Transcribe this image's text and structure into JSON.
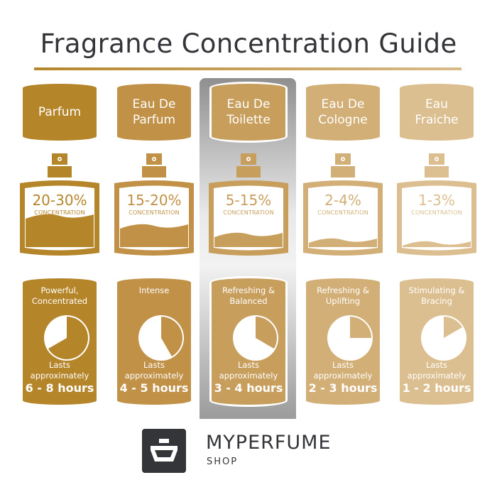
{
  "title": "Fragrance Concentration Guide",
  "concentration_label": "CONCENTRATION",
  "lasts_line1": "Lasts",
  "lasts_line2": "approximately",
  "highlighted_index": 2,
  "columns": [
    {
      "name": [
        "Parfum"
      ],
      "percent": "20-30%",
      "fill_level": 0.55,
      "descriptor": [
        "Powerful,",
        "Concentrated"
      ],
      "hours": "6 - 8 hours",
      "max_hours": 8,
      "color": "#b5852a"
    },
    {
      "name": [
        "Eau De",
        "Parfum"
      ],
      "percent": "15-20%",
      "fill_level": 0.38,
      "descriptor": [
        "Intense"
      ],
      "hours": "4 - 5 hours",
      "max_hours": 5,
      "color": "#c09146"
    },
    {
      "name": [
        "Eau De",
        "Toilette"
      ],
      "percent": "5-15%",
      "fill_level": 0.22,
      "descriptor": [
        "Refreshing &",
        "Balanced"
      ],
      "hours": "3 - 4 hours",
      "max_hours": 4,
      "color": "#c79e5c"
    },
    {
      "name": [
        "Eau De",
        "Cologne"
      ],
      "percent": "2-4%",
      "fill_level": 0.13,
      "descriptor": [
        "Refreshing &",
        "Uplifting"
      ],
      "hours": "2 - 3 hours",
      "max_hours": 3,
      "color": "#d3af78"
    },
    {
      "name": [
        "Eau",
        "Fraiche"
      ],
      "percent": "1-3%",
      "fill_level": 0.07,
      "descriptor": [
        "Stimulating &",
        "Bracing"
      ],
      "hours": "1 - 2 hours",
      "max_hours": 2,
      "color": "#dcbf90"
    }
  ],
  "logo": {
    "brand": "MYPERFUME",
    "sub": "SHOP",
    "color": "#333538"
  }
}
